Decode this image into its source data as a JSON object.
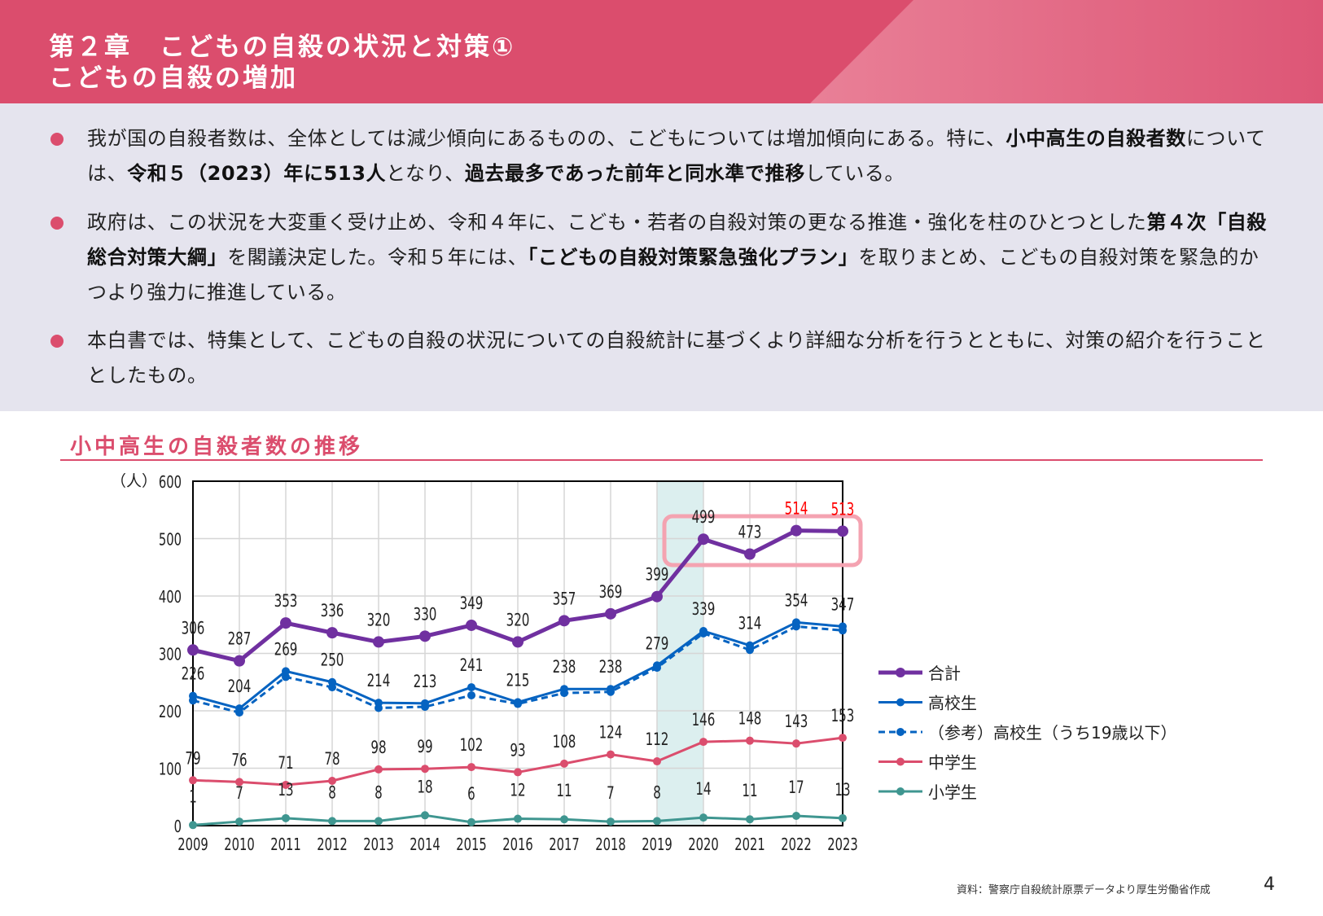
{
  "header": {
    "title_line1": "第２章　こどもの自殺の状況と対策①",
    "title_line2": "こどもの自殺の増加"
  },
  "bullets": [
    {
      "segments": [
        {
          "text": "我が国の自殺者数は、全体としては減少傾向にあるものの、こどもについては増加傾向にある。特に、",
          "bold": false
        },
        {
          "text": "小中高生の自殺者数",
          "bold": true
        },
        {
          "text": "については、",
          "bold": false
        },
        {
          "text": "令和５（2023）年に513人",
          "bold": true
        },
        {
          "text": "となり、",
          "bold": false
        },
        {
          "text": "過去最多であった前年と同水準で推移",
          "bold": true
        },
        {
          "text": "している。",
          "bold": false
        }
      ]
    },
    {
      "segments": [
        {
          "text": "政府は、この状況を大変重く受け止め、令和４年に、こども・若者の自殺対策の更なる推進・強化を柱のひとつとした",
          "bold": false
        },
        {
          "text": "第４次「自殺総合対策大綱」",
          "bold": true
        },
        {
          "text": "を閣議決定した。令和５年には、",
          "bold": false
        },
        {
          "text": "「こどもの自殺対策緊急強化プラン」",
          "bold": true
        },
        {
          "text": "を取りまとめ、こどもの自殺対策を緊急的かつより強力に推進している。",
          "bold": false
        }
      ]
    },
    {
      "segments": [
        {
          "text": "本白書では、特集として、こどもの自殺の状況についての自殺統計に基づくより詳細な分析を行うとともに、対策の紹介を行うこととしたもの。",
          "bold": false
        }
      ]
    }
  ],
  "colors": {
    "accent": "#db4d6d",
    "intro_bg": "#e5e4ee",
    "highlight_band": "#dcefef",
    "highlight_box": "#f4a3b1",
    "highlight_label": "#ff0000"
  },
  "chart_data": {
    "type": "line",
    "title": "小中高生の自殺者数の推移",
    "ylabel": "（人）",
    "ylim": [
      0,
      600
    ],
    "yticks": [
      0,
      100,
      200,
      300,
      400,
      500,
      600
    ],
    "grid": true,
    "legend_position": "right",
    "x": [
      "2009",
      "2010",
      "2011",
      "2012",
      "2013",
      "2014",
      "2015",
      "2016",
      "2017",
      "2018",
      "2019",
      "2020",
      "2021",
      "2022",
      "2023"
    ],
    "highlight_band": [
      "2019",
      "2020"
    ],
    "highlight_box": [
      "2020",
      "2023"
    ],
    "highlight_labels": [
      "2022",
      "2023"
    ],
    "series": [
      {
        "name": "合計",
        "color": "#7030a0",
        "style": "solid",
        "labeled": true,
        "values": [
          306,
          287,
          353,
          336,
          320,
          330,
          349,
          320,
          357,
          369,
          399,
          499,
          473,
          514,
          513
        ]
      },
      {
        "name": "高校生",
        "color": "#0563c1",
        "style": "solid",
        "labeled": true,
        "values": [
          226,
          204,
          269,
          250,
          214,
          213,
          241,
          215,
          238,
          238,
          279,
          339,
          314,
          354,
          347
        ]
      },
      {
        "name": "（参考）高校生（うち19歳以下）",
        "color": "#0563c1",
        "style": "dashed",
        "labeled": false,
        "values": [
          218,
          197,
          259,
          241,
          205,
          207,
          227,
          212,
          231,
          233,
          275,
          335,
          306,
          347,
          340
        ]
      },
      {
        "name": "中学生",
        "color": "#db4d6d",
        "style": "solid",
        "labeled": true,
        "values": [
          79,
          76,
          71,
          78,
          98,
          99,
          102,
          93,
          108,
          124,
          112,
          146,
          148,
          143,
          153
        ]
      },
      {
        "name": "小学生",
        "color": "#3f9690",
        "style": "solid",
        "labeled": true,
        "values": [
          1,
          7,
          13,
          8,
          8,
          18,
          6,
          12,
          11,
          7,
          8,
          14,
          11,
          17,
          13
        ]
      }
    ]
  },
  "footer": {
    "source": "資料：警察庁自殺統計原票データより厚生労働省作成",
    "page_number": "4"
  }
}
